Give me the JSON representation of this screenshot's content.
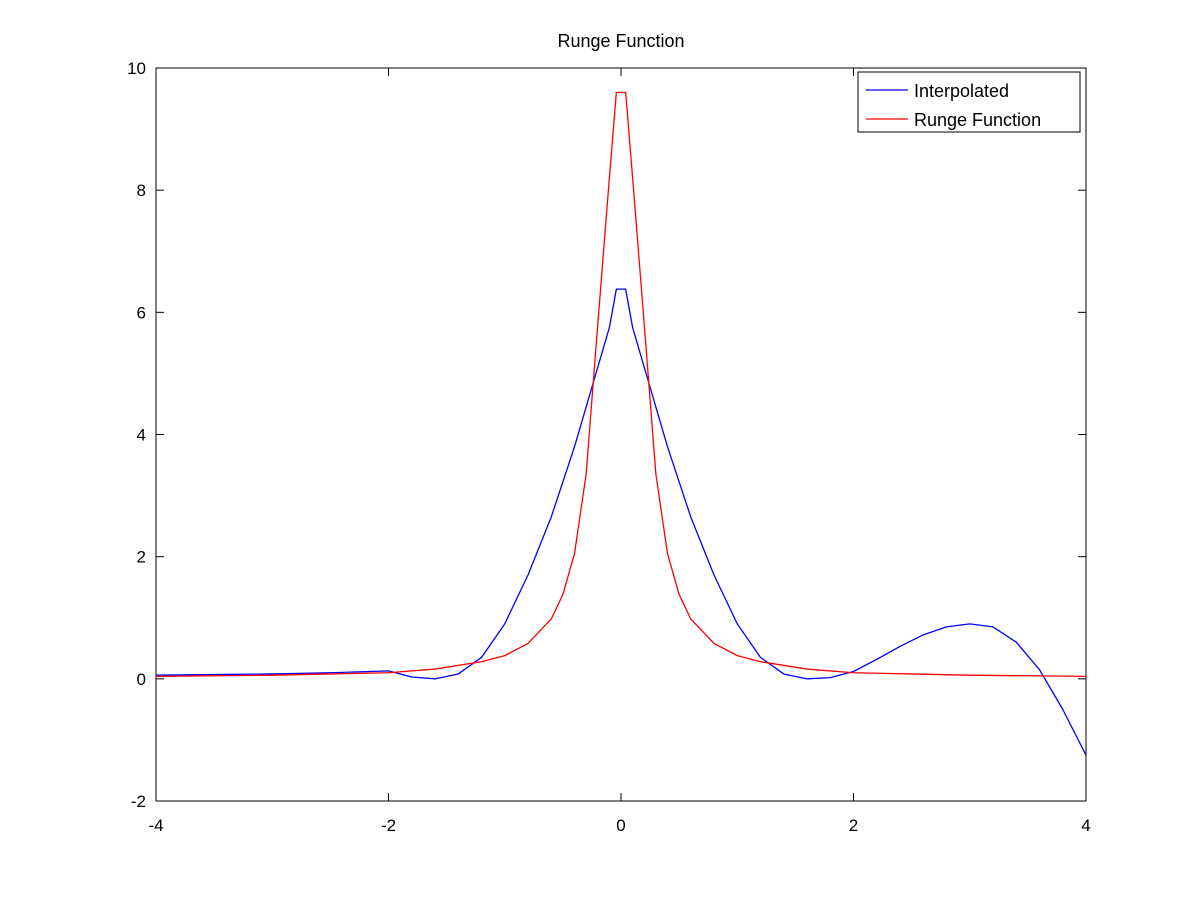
{
  "chart_data": {
    "type": "line",
    "title": "Runge Function",
    "xlabel": "",
    "ylabel": "",
    "xlim": [
      -4,
      4
    ],
    "ylim": [
      -2,
      10
    ],
    "xticks": [
      -4,
      -2,
      0,
      2,
      4
    ],
    "yticks": [
      -2,
      0,
      2,
      4,
      6,
      8,
      10
    ],
    "xtick_labels": [
      "-4",
      "-2",
      "0",
      "2",
      "4"
    ],
    "ytick_labels": [
      "-2",
      "0",
      "2",
      "4",
      "6",
      "8",
      "10"
    ],
    "grid": false,
    "legend_position": "top-right",
    "series": [
      {
        "name": "Interpolated",
        "color": "#0000ff",
        "x": [
          -4.0,
          -3.5,
          -3.0,
          -2.5,
          -2.0,
          -1.8,
          -1.6,
          -1.4,
          -1.2,
          -1.0,
          -0.8,
          -0.6,
          -0.4,
          -0.3,
          -0.2,
          -0.1,
          -0.04,
          0.04,
          0.1,
          0.2,
          0.3,
          0.4,
          0.6,
          0.8,
          1.0,
          1.2,
          1.4,
          1.6,
          1.8,
          2.0,
          2.2,
          2.4,
          2.6,
          2.8,
          3.0,
          3.2,
          3.4,
          3.6,
          3.8,
          4.0
        ],
        "y": [
          0.06,
          0.07,
          0.08,
          0.1,
          0.13,
          0.03,
          0.0,
          0.08,
          0.35,
          0.9,
          1.7,
          2.65,
          3.8,
          4.45,
          5.1,
          5.75,
          6.38,
          6.38,
          5.75,
          5.1,
          4.45,
          3.8,
          2.65,
          1.7,
          0.9,
          0.35,
          0.08,
          0.0,
          0.02,
          0.12,
          0.32,
          0.53,
          0.72,
          0.85,
          0.9,
          0.85,
          0.6,
          0.15,
          -0.5,
          -1.25
        ]
      },
      {
        "name": "Runge Function",
        "color": "#ff0000",
        "x": [
          -4.0,
          -3.5,
          -3.0,
          -2.5,
          -2.0,
          -1.6,
          -1.2,
          -1.0,
          -0.8,
          -0.6,
          -0.5,
          -0.4,
          -0.3,
          -0.2,
          -0.1,
          -0.04,
          0.04,
          0.1,
          0.2,
          0.3,
          0.4,
          0.5,
          0.6,
          0.8,
          1.0,
          1.2,
          1.6,
          2.0,
          2.5,
          3.0,
          3.5,
          4.0
        ],
        "y": [
          0.04,
          0.05,
          0.06,
          0.08,
          0.1,
          0.16,
          0.28,
          0.38,
          0.58,
          0.98,
          1.38,
          2.05,
          3.35,
          5.8,
          8.2,
          9.6,
          9.6,
          8.2,
          5.8,
          3.35,
          2.05,
          1.38,
          0.98,
          0.58,
          0.38,
          0.28,
          0.16,
          0.1,
          0.08,
          0.06,
          0.05,
          0.04
        ]
      }
    ]
  }
}
